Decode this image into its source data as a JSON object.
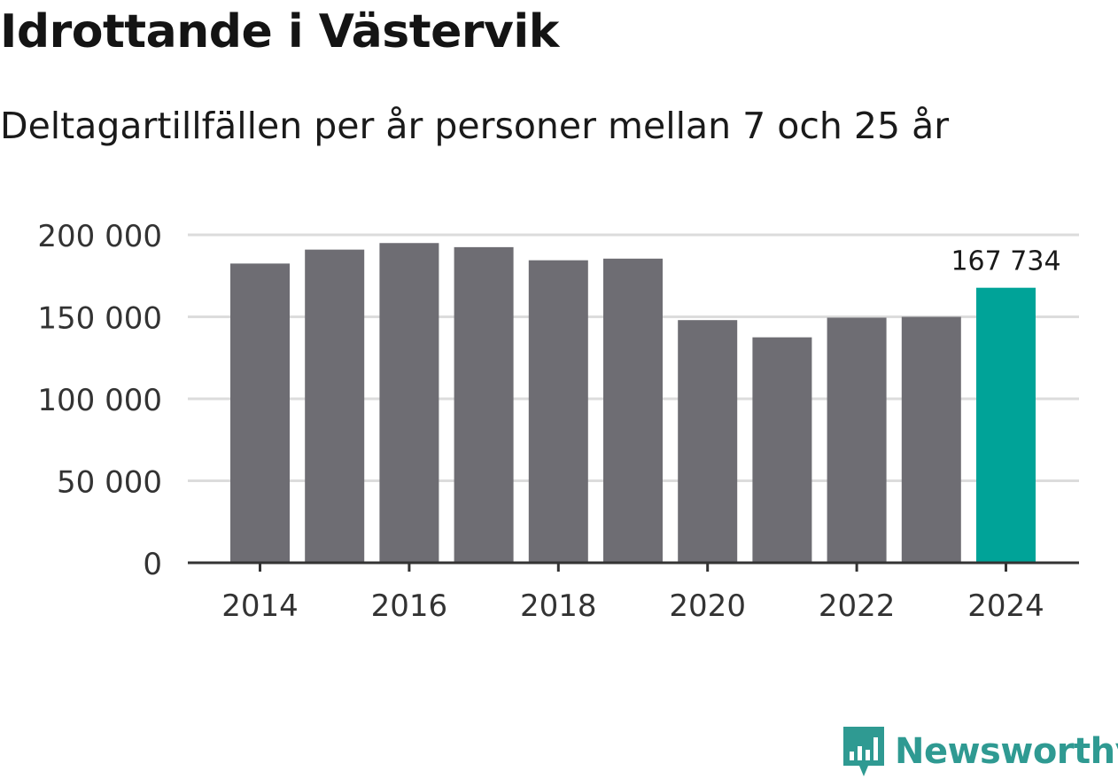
{
  "header": {
    "title": "Idrottande i Västervik",
    "subtitle": "Deltagartillfällen per år personer mellan 7 och 25 år"
  },
  "chart_data": {
    "type": "bar",
    "categories": [
      "2014",
      "2015",
      "2016",
      "2017",
      "2018",
      "2019",
      "2020",
      "2021",
      "2022",
      "2023",
      "2024"
    ],
    "values": [
      182500,
      191000,
      195000,
      192500,
      184500,
      185500,
      148000,
      137500,
      149500,
      150000,
      167734
    ],
    "highlight_index": 10,
    "highlight_label": "167 734",
    "x_tick_labels": [
      "2014",
      "2016",
      "2018",
      "2020",
      "2022",
      "2024"
    ],
    "y_ticks": [
      0,
      50000,
      100000,
      150000,
      200000
    ],
    "y_tick_labels": [
      "0",
      "50 000",
      "100 000",
      "150 000",
      "200 000"
    ],
    "ylim": [
      0,
      200000
    ],
    "grid": true,
    "colors": {
      "bar": "#6e6d73",
      "highlight": "#00a398",
      "grid": "#dcdcdc",
      "axis": "#333333"
    }
  },
  "branding": {
    "logo_text": "Newsworthy",
    "logo_icon": "newsworthy-chart-icon",
    "logo_color": "#2f9a92"
  }
}
